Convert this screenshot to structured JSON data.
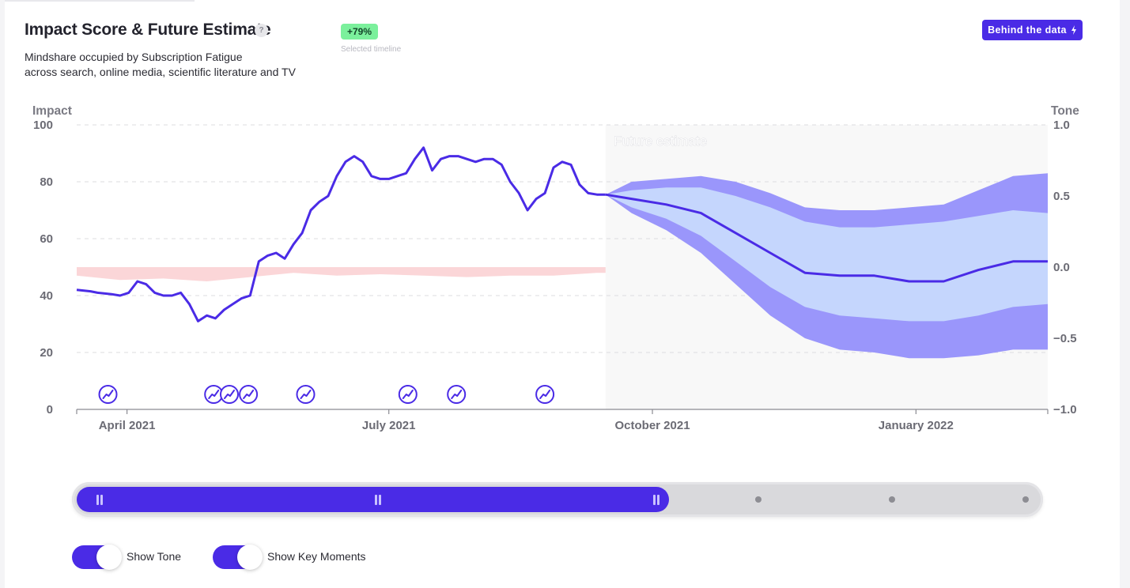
{
  "header": {
    "title": "Impact Score & Future Estimate",
    "help_glyph": "?",
    "subtitle_line1": "Mindshare occupied by Subscription Fatigue",
    "subtitle_line2": "across search, online media, scientific literature and TV",
    "change_badge": "+79%",
    "change_caption": "Selected timeline",
    "behind_button": "Behind the data",
    "behind_icon": "lightning-icon"
  },
  "colors": {
    "accent": "#4a2be6",
    "forecast_outer": "#9a96fb",
    "forecast_inner": "#c5d6fd",
    "tone_band": "#fbd6d8",
    "future_bg": "#f8f8f8",
    "badge": "#7bf09c"
  },
  "chart_data": {
    "type": "line",
    "title": "Impact Score & Future Estimate",
    "xlabel": "",
    "ylabel": "Impact",
    "y2label": "Tone",
    "ylim": [
      0,
      100
    ],
    "y2lim": [
      -1.0,
      1.0
    ],
    "yticks": [
      "0",
      "20",
      "40",
      "60",
      "80",
      "100"
    ],
    "y2ticks": [
      "−1.0",
      "−0.5",
      "0.0",
      "0.5",
      "1.0"
    ],
    "x_tick_labels": [
      "April 2021",
      "July 2021",
      "October 2021",
      "January 2022"
    ],
    "x_tick_days": [
      29,
      180,
      332,
      484
    ],
    "xlim_days": [
      0,
      560
    ],
    "future_start_day": 305,
    "future_label": "Future estimate",
    "grid": true,
    "series": [
      {
        "name": "Impact",
        "days": [
          0,
          8,
          12,
          20,
          25,
          30,
          35,
          40,
          45,
          50,
          55,
          60,
          65,
          70,
          75,
          80,
          85,
          90,
          95,
          100,
          105,
          110,
          115,
          120,
          125,
          130,
          135,
          140,
          145,
          150,
          155,
          160,
          165,
          170,
          175,
          180,
          185,
          190,
          195,
          200,
          205,
          210,
          215,
          220,
          225,
          230,
          235,
          240,
          245,
          250,
          255,
          260,
          265,
          270,
          275,
          280,
          285,
          290,
          295,
          300,
          305
        ],
        "values": [
          42,
          41.5,
          41,
          40.5,
          40,
          41,
          45,
          44,
          41,
          40,
          40,
          41,
          37,
          31,
          33,
          32,
          35,
          37,
          39,
          40,
          52,
          54,
          55,
          53,
          58,
          62,
          70,
          73,
          75,
          82,
          87,
          89,
          87,
          82,
          81,
          81,
          82,
          83,
          88,
          92,
          84,
          88,
          89,
          89,
          88,
          87,
          88,
          88,
          86,
          80,
          76,
          70,
          74,
          76,
          85,
          87,
          86,
          79,
          76,
          75.5,
          75.5
        ]
      },
      {
        "name": "Forecast",
        "days": [
          305,
          320,
          340,
          360,
          380,
          400,
          420,
          440,
          460,
          480,
          500,
          520,
          540,
          560
        ],
        "values": [
          75.5,
          74,
          72,
          69,
          62,
          55,
          48,
          47,
          47,
          45,
          45,
          49,
          52,
          52
        ],
        "band_inner_low": [
          75.5,
          71,
          67,
          61,
          52,
          43,
          36,
          33,
          32,
          31,
          31,
          33,
          36,
          37
        ],
        "band_inner_high": [
          75.5,
          77,
          78,
          78,
          75,
          71,
          66,
          64,
          64,
          65,
          66,
          68,
          70,
          69
        ],
        "band_outer_low": [
          75.5,
          69,
          63,
          55,
          44,
          33,
          25,
          21,
          20,
          18,
          18,
          19,
          21,
          21
        ],
        "band_outer_high": [
          75.5,
          80,
          81,
          82,
          80,
          76,
          71,
          70,
          70,
          71,
          72,
          77,
          82,
          83
        ]
      },
      {
        "name": "Tone",
        "days": [
          0,
          25,
          50,
          75,
          100,
          125,
          150,
          175,
          200,
          225,
          250,
          275,
          300,
          305
        ],
        "upper": [
          50,
          50,
          50,
          50,
          50,
          50,
          50,
          50,
          50,
          50,
          50,
          50,
          50,
          50
        ],
        "lower": [
          47,
          45.5,
          46,
          45,
          46.5,
          48,
          47,
          47.5,
          47,
          46.5,
          47,
          47,
          48,
          48
        ]
      }
    ],
    "key_moment_days": [
      18,
      79,
      88,
      99,
      132,
      191,
      219,
      270
    ]
  },
  "controls": {
    "range_start_fraction": 0,
    "range_end_fraction": 0.614,
    "toggle_tone": {
      "label": "Show Tone",
      "on": true
    },
    "toggle_moments": {
      "label": "Show Key Moments",
      "on": true
    }
  }
}
